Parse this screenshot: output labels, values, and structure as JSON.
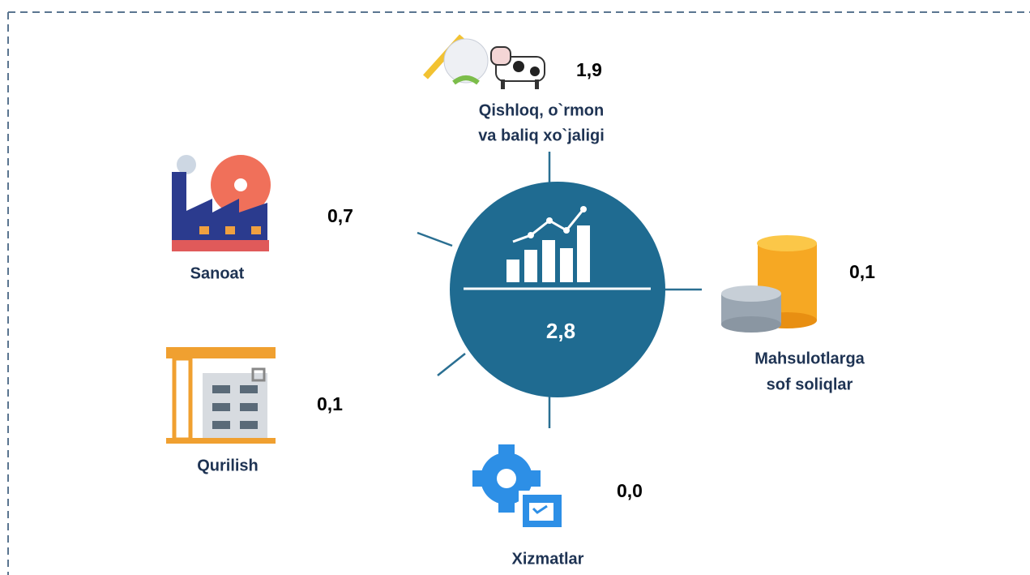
{
  "center": {
    "value": "2,8"
  },
  "nodes": [
    {
      "label_lines": [
        "Qishloq, o`rmon",
        "va baliq xo`jaligi"
      ],
      "value": "1,9"
    },
    {
      "label_lines": [
        "Sanoat"
      ],
      "value": "0,7"
    },
    {
      "label_lines": [
        "Mahsulotlarga",
        "sof soliqlar"
      ],
      "value": "0,1"
    },
    {
      "label_lines": [
        "Qurilish"
      ],
      "value": "0,1"
    },
    {
      "label_lines": [
        "Xizmatlar"
      ],
      "value": "0,0"
    }
  ]
}
